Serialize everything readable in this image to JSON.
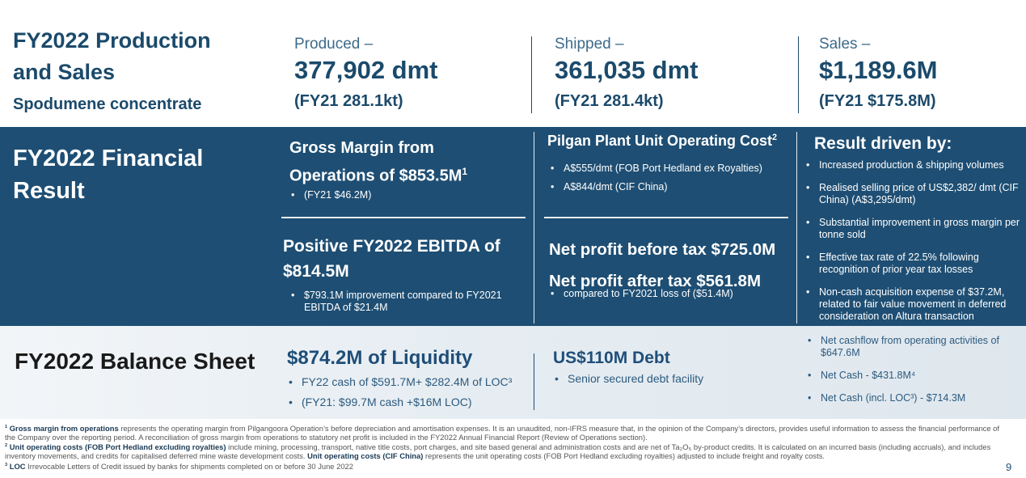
{
  "production": {
    "title": "FY2022 Production and Sales",
    "subtitle": "Spodumene concentrate",
    "stats": [
      {
        "label": "Produced –",
        "value": "377,902 dmt",
        "comparison": "(FY21 281.1kt)"
      },
      {
        "label": "Shipped –",
        "value": "361,035 dmt",
        "comparison": "(FY21 281.4kt)"
      },
      {
        "label": "Sales –",
        "value": "$1,189.6M",
        "comparison": "(FY21 $175.8M)"
      }
    ]
  },
  "financial": {
    "title": "FY2022 Financial Result",
    "gross_margin": {
      "heading": "Gross Margin from Operations of $853.5M",
      "note": "1",
      "bullets": [
        "(FY21 $46.2M)"
      ]
    },
    "ebitda": {
      "heading": "Positive FY2022 EBITDA of $814.5M",
      "bullets": [
        "$793.1M improvement compared to FY2021 EBITDA of $21.4M"
      ]
    },
    "unit_cost": {
      "heading": "Pilgan Plant Unit Operating Cost",
      "note": "2",
      "bullets": [
        "A$555/dmt (FOB Port Hedland ex Royalties)",
        "A$844/dmt (CIF China)"
      ]
    },
    "net_profit": {
      "headings": [
        "Net profit before tax $725.0M",
        "Net profit after tax $561.8M"
      ],
      "bullets": [
        "compared to FY2021 loss of ($51.4M)"
      ]
    },
    "drivers": {
      "heading": "Result driven by:",
      "bullets": [
        "Increased production & shipping volumes",
        "Realised selling price of US$2,382/ dmt (CIF China) (A$3,295/dmt)",
        "Substantial improvement in gross margin per tonne sold",
        "Effective tax rate of 22.5% following recognition of prior year tax losses",
        "Non-cash acquisition expense of $37.2M, related to fair value movement in deferred consideration on Altura transaction"
      ]
    }
  },
  "balance": {
    "title": "FY2022 Balance Sheet",
    "liquidity": {
      "heading": "$874.2M of Liquidity",
      "bullets": [
        "FY22 cash of $591.7M+ $282.4M of LOC³",
        "(FY21: $99.7M cash +$16M LOC)"
      ]
    },
    "debt": {
      "heading": "US$110M Debt",
      "bullets": [
        "Senior secured debt facility"
      ]
    },
    "cash": {
      "bullets": [
        "Net cashflow from operating activities of $647.6M",
        "Net Cash - $431.8M⁴",
        "Net Cash (incl. LOC³) - $714.3M"
      ]
    }
  },
  "footnotes": [
    {
      "number": "1",
      "parts": [
        {
          "text": "Gross margin from operations",
          "bold": true
        },
        {
          "text": " represents the operating margin from Pilgangoora Operation’s before depreciation and amortisation expenses. It is an unaudited, non-IFRS measure that, in the opinion of the Company’s directors, provides useful information to assess the financial performance of the Company over the reporting period. A reconciliation of gross margin from operations to statutory net profit is included in the FY2022 Annual Financial Report (Review of Operations section).",
          "bold": false
        }
      ]
    },
    {
      "number": "2",
      "parts": [
        {
          "text": "Unit operating costs (FOB Port Hedland excluding royalties)",
          "bold": true
        },
        {
          "text": " include mining, processing, transport, native title costs, port charges, and site based general and administration costs and are net of Ta₂O₅ by-product credits. It is calculated on an incurred basis (including accruals), and includes inventory movements, and credits for capitalised deferred mine waste development costs. ",
          "bold": false
        },
        {
          "text": "Unit operating costs (CIF China)",
          "bold": true
        },
        {
          "text": " represents the unit operating costs (FOB Port Hedland excluding royalties) adjusted to include freight and royalty costs.",
          "bold": false
        }
      ]
    },
    {
      "number": "3",
      "parts": [
        {
          "text": "LOC",
          "bold": true
        },
        {
          "text": " Irrevocable Letters of Credit issued by banks for shipments completed on or before 30 June 2022",
          "bold": false
        }
      ]
    }
  ],
  "page_number": "9"
}
